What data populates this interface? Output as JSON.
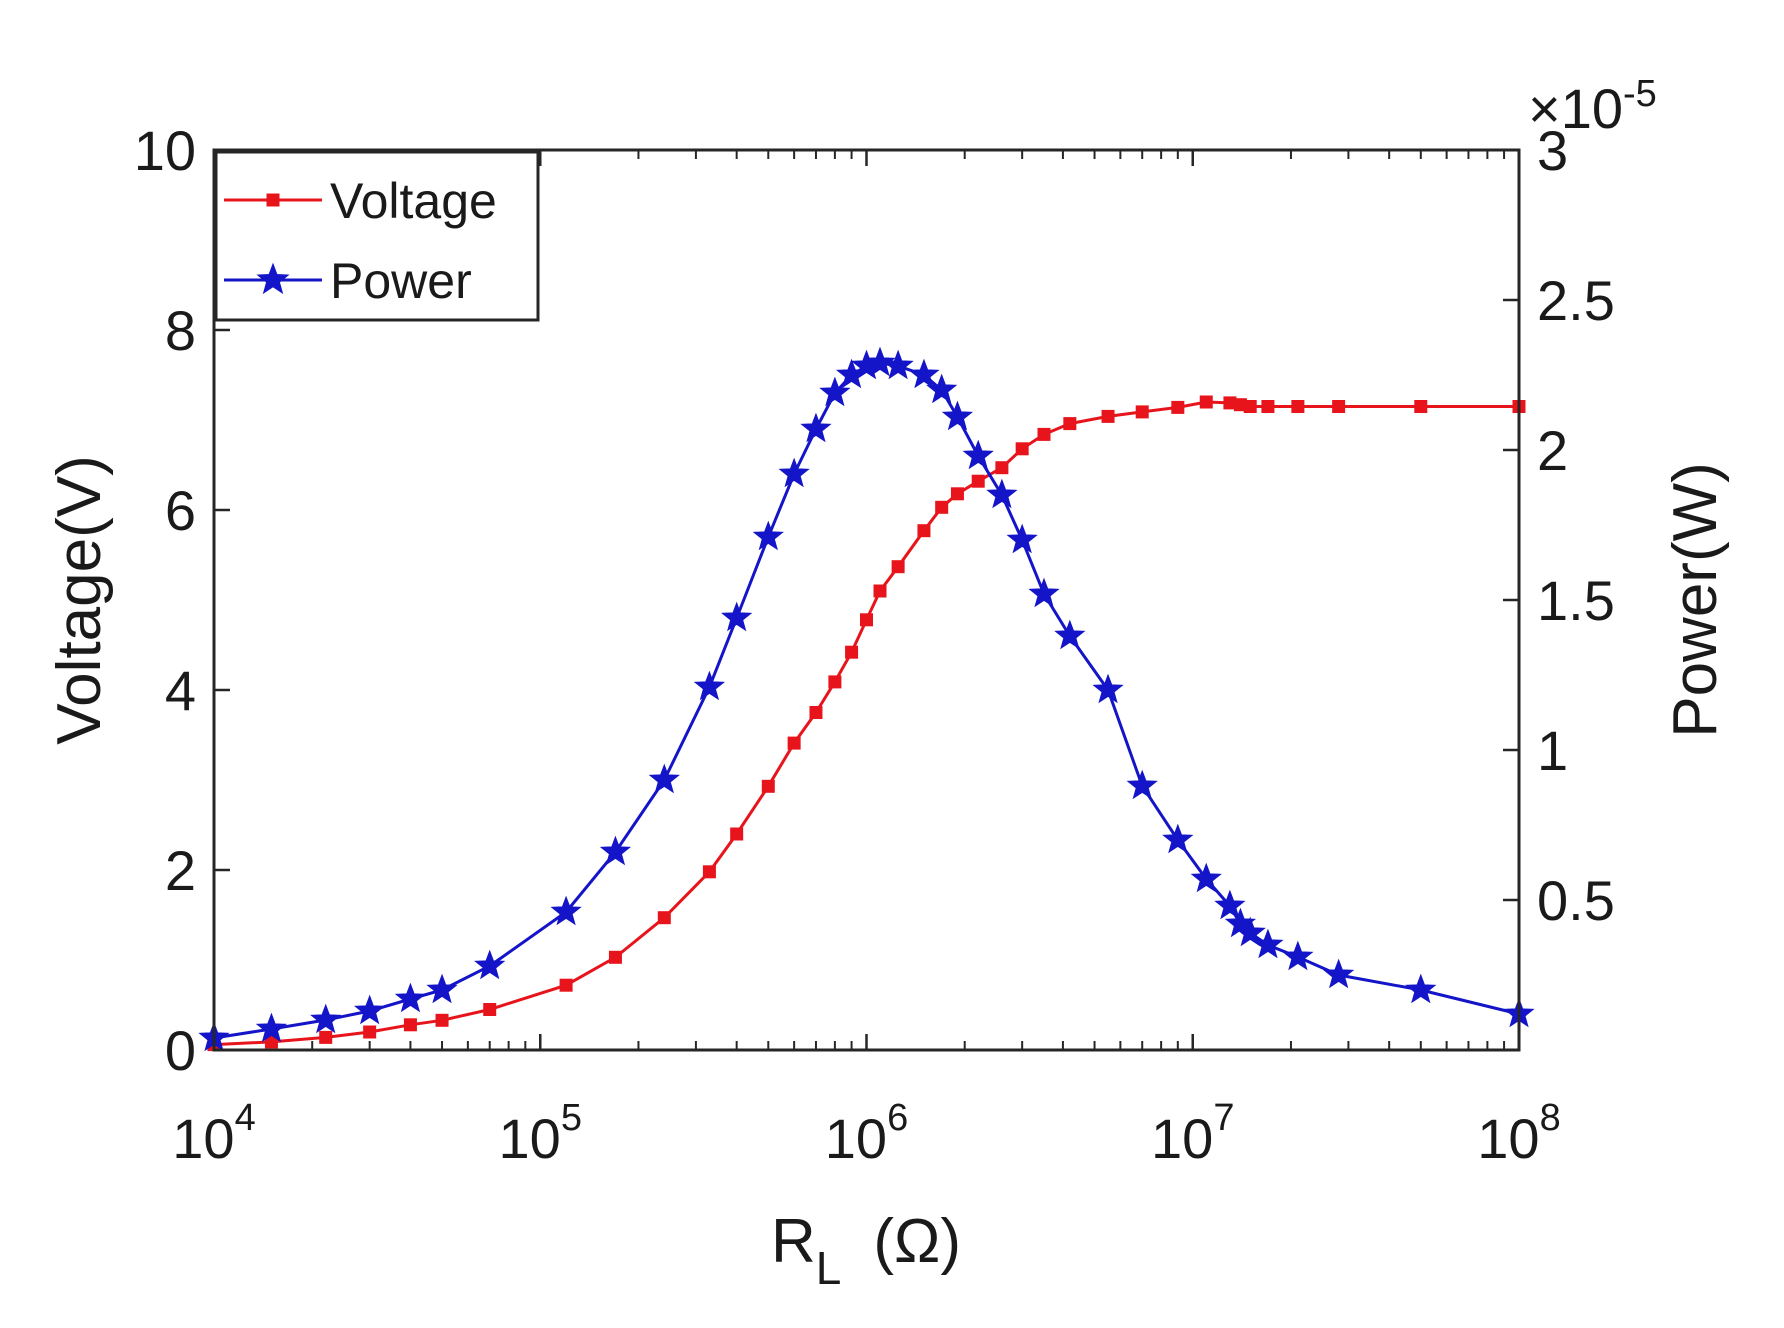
{
  "chart_data": {
    "type": "line",
    "title": "",
    "xlabel": {
      "main": "R",
      "sub": "L",
      "unit": "(Ω)"
    },
    "ylabel_left": "Voltage(V)",
    "ylabel_right": "Power(W)",
    "right_axis_multiplier": {
      "times": "×",
      "base": "10",
      "exponent": "-5"
    },
    "x_scale": "log",
    "xlim": [
      10000,
      100000000
    ],
    "ylim_left": [
      0,
      10
    ],
    "ylim_right": [
      0,
      3
    ],
    "x_ticks": [
      {
        "value": 10000,
        "base": "10",
        "exp": "4"
      },
      {
        "value": 100000,
        "base": "10",
        "exp": "5"
      },
      {
        "value": 1000000,
        "base": "10",
        "exp": "6"
      },
      {
        "value": 10000000,
        "base": "10",
        "exp": "7"
      },
      {
        "value": 100000000,
        "base": "10",
        "exp": "8"
      }
    ],
    "y_ticks_left": [
      {
        "value": 0,
        "label": "0"
      },
      {
        "value": 2,
        "label": "2"
      },
      {
        "value": 4,
        "label": "4"
      },
      {
        "value": 6,
        "label": "6"
      },
      {
        "value": 8,
        "label": "8"
      },
      {
        "value": 10,
        "label": "10"
      }
    ],
    "y_ticks_right": [
      {
        "value": 0.5,
        "label": "0.5"
      },
      {
        "value": 1,
        "label": "1"
      },
      {
        "value": 1.5,
        "label": "1.5"
      },
      {
        "value": 2,
        "label": "2"
      },
      {
        "value": 2.5,
        "label": "2.5"
      },
      {
        "value": 3,
        "label": "3"
      }
    ],
    "legend": {
      "position": "top-left"
    },
    "grid": false,
    "series": [
      {
        "name": "Voltage",
        "axis": "left",
        "color": "#e8141c",
        "marker": "square",
        "x": [
          10000,
          15000,
          22000,
          30000,
          40000,
          50000,
          70000,
          120000,
          170000,
          240000,
          330000,
          400000,
          500000,
          600000,
          700000,
          800000,
          900000,
          1000000,
          1100000,
          1250000,
          1500000,
          1700000,
          1900000,
          2200000,
          2600000,
          3000000,
          3500000,
          4200000,
          5500000,
          7000000,
          9000000,
          11000000,
          13000000,
          14000000,
          15000000,
          17000000,
          21000000,
          28000000,
          50000000,
          100000000
        ],
        "y": [
          0.06,
          0.09,
          0.14,
          0.2,
          0.28,
          0.33,
          0.45,
          0.72,
          1.03,
          1.47,
          1.98,
          2.4,
          2.93,
          3.41,
          3.75,
          4.09,
          4.42,
          4.78,
          5.1,
          5.37,
          5.77,
          6.03,
          6.18,
          6.32,
          6.47,
          6.68,
          6.84,
          6.96,
          7.04,
          7.09,
          7.14,
          7.2,
          7.19,
          7.17,
          7.15,
          7.15,
          7.15,
          7.15,
          7.15,
          7.15
        ]
      },
      {
        "name": "Power",
        "axis": "right",
        "color": "#1414c8",
        "marker": "star",
        "x": [
          10000,
          15000,
          22000,
          30000,
          40000,
          50000,
          70000,
          120000,
          170000,
          240000,
          330000,
          400000,
          500000,
          600000,
          700000,
          800000,
          900000,
          1000000,
          1100000,
          1250000,
          1500000,
          1700000,
          1900000,
          2200000,
          2600000,
          3000000,
          3500000,
          4200000,
          5500000,
          7000000,
          9000000,
          11000000,
          13000000,
          14000000,
          15000000,
          17000000,
          21000000,
          28000000,
          50000000,
          100000000
        ],
        "y": [
          0.04,
          0.07,
          0.1,
          0.13,
          0.17,
          0.2,
          0.28,
          0.46,
          0.66,
          0.9,
          1.21,
          1.44,
          1.71,
          1.92,
          2.07,
          2.19,
          2.25,
          2.28,
          2.29,
          2.28,
          2.25,
          2.2,
          2.11,
          1.98,
          1.85,
          1.7,
          1.52,
          1.38,
          1.2,
          0.88,
          0.7,
          0.57,
          0.48,
          0.42,
          0.39,
          0.35,
          0.31,
          0.25,
          0.2,
          0.12
        ]
      }
    ]
  }
}
